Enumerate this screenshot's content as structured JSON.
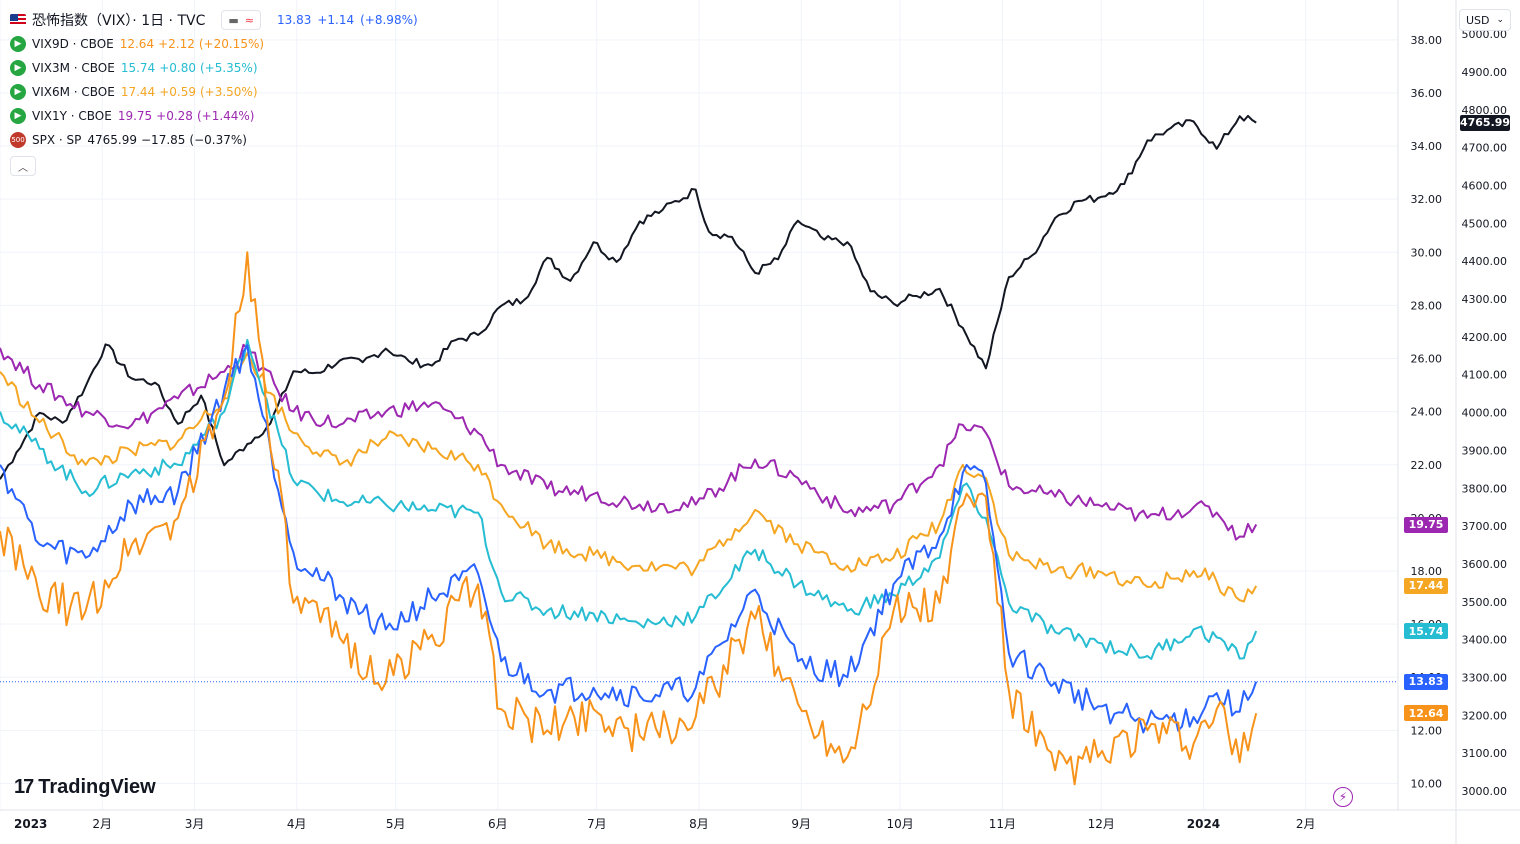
{
  "header": {
    "title": "恐怖指数（VIX）· 1日 · TVC",
    "main_value": "13.83",
    "main_change": "+1.14",
    "main_change_pct": "(+8.98%)",
    "compare_icon": "≈",
    "main_color": "#2962ff"
  },
  "legend": [
    {
      "symbol": "VIX9D · CBOE",
      "value": "12.64",
      "change": "+2.12",
      "pct": "(+20.15%)",
      "color": "#f7931a",
      "badge": "arrow-icon",
      "badge_color": "#26a641"
    },
    {
      "symbol": "VIX3M · CBOE",
      "value": "15.74",
      "change": "+0.80",
      "pct": "(+5.35%)",
      "color": "#26bcd2",
      "badge": "arrow-icon",
      "badge_color": "#26a641"
    },
    {
      "symbol": "VIX6M · CBOE",
      "value": "17.44",
      "change": "+0.59",
      "pct": "(+3.50%)",
      "color": "#f5a623",
      "badge": "arrow-icon",
      "badge_color": "#26a641"
    },
    {
      "symbol": "VIX1Y · CBOE",
      "value": "19.75",
      "change": "+0.28",
      "pct": "(+1.44%)",
      "color": "#9c27b0",
      "badge": "arrow-icon",
      "badge_color": "#26a641"
    },
    {
      "symbol": "SPX · SP",
      "value": "4765.99",
      "change": "−17.85",
      "pct": "(−0.37%)",
      "color": "#131722",
      "badge": "500",
      "badge_color": "#c0392b"
    }
  ],
  "currency": "USD",
  "logo": "TradingView",
  "chart_data": {
    "type": "line",
    "x_ticks": [
      "2023",
      "2月",
      "3月",
      "4月",
      "5月",
      "6月",
      "7月",
      "8月",
      "9月",
      "10月",
      "11月",
      "12月",
      "2024",
      "2月"
    ],
    "left_axis": {
      "ylim": [
        9.0,
        39.5
      ],
      "ticks": [
        38.0,
        36.0,
        34.0,
        32.0,
        30.0,
        28.0,
        26.0,
        24.0,
        22.0,
        20.0,
        18.0,
        16.0,
        14.0,
        12.0,
        10.0
      ]
    },
    "right_axis": {
      "ylim": [
        2950,
        5090
      ],
      "ticks": [
        5000,
        4900,
        4800,
        4700,
        4600,
        4500,
        4400,
        4300,
        4200,
        4100,
        4000,
        3900,
        3800,
        3700,
        3600,
        3500,
        3400,
        3300,
        3200,
        3100,
        3000
      ]
    },
    "current_price_line": 13.83,
    "series": [
      {
        "name": "SPX",
        "axis": "right",
        "color": "#131722",
        "last_label": "4765.99",
        "points": [
          [
            "2023-01-01",
            3824
          ],
          [
            "2023-01-06",
            3895
          ],
          [
            "2023-01-13",
            3999
          ],
          [
            "2023-01-20",
            3973
          ],
          [
            "2023-01-27",
            4070
          ],
          [
            "2023-02-02",
            4180
          ],
          [
            "2023-02-10",
            4090
          ],
          [
            "2023-02-17",
            4079
          ],
          [
            "2023-02-24",
            3970
          ],
          [
            "2023-03-03",
            4045
          ],
          [
            "2023-03-10",
            3861
          ],
          [
            "2023-03-17",
            3917
          ],
          [
            "2023-03-24",
            3971
          ],
          [
            "2023-03-31",
            4109
          ],
          [
            "2023-04-07",
            4105
          ],
          [
            "2023-04-14",
            4137
          ],
          [
            "2023-04-21",
            4133
          ],
          [
            "2023-04-28",
            4169
          ],
          [
            "2023-05-05",
            4136
          ],
          [
            "2023-05-12",
            4124
          ],
          [
            "2023-05-19",
            4191
          ],
          [
            "2023-05-26",
            4205
          ],
          [
            "2023-06-02",
            4282
          ],
          [
            "2023-06-09",
            4298
          ],
          [
            "2023-06-16",
            4409
          ],
          [
            "2023-06-23",
            4348
          ],
          [
            "2023-06-30",
            4450
          ],
          [
            "2023-07-07",
            4398
          ],
          [
            "2023-07-14",
            4505
          ],
          [
            "2023-07-21",
            4536
          ],
          [
            "2023-07-31",
            4589
          ],
          [
            "2023-08-04",
            4478
          ],
          [
            "2023-08-11",
            4464
          ],
          [
            "2023-08-18",
            4369
          ],
          [
            "2023-08-25",
            4405
          ],
          [
            "2023-08-31",
            4507
          ],
          [
            "2023-09-08",
            4457
          ],
          [
            "2023-09-15",
            4450
          ],
          [
            "2023-09-22",
            4320
          ],
          [
            "2023-09-29",
            4288
          ],
          [
            "2023-10-06",
            4308
          ],
          [
            "2023-10-13",
            4327
          ],
          [
            "2023-10-20",
            4224
          ],
          [
            "2023-10-27",
            4117
          ],
          [
            "2023-11-03",
            4358
          ],
          [
            "2023-11-10",
            4415
          ],
          [
            "2023-11-17",
            4514
          ],
          [
            "2023-11-24",
            4559
          ],
          [
            "2023-11-30",
            4567
          ],
          [
            "2023-12-08",
            4604
          ],
          [
            "2023-12-15",
            4719
          ],
          [
            "2023-12-21",
            4746
          ],
          [
            "2023-12-29",
            4769
          ],
          [
            "2024-01-05",
            4697
          ],
          [
            "2024-01-12",
            4783
          ],
          [
            "2024-01-17",
            4766
          ]
        ]
      },
      {
        "name": "VIX1Y",
        "axis": "left",
        "color": "#9c27b0",
        "last_label": "19.75",
        "points": [
          [
            "2023-01-01",
            26.4
          ],
          [
            "2023-01-13",
            25.0
          ],
          [
            "2023-01-27",
            24.0
          ],
          [
            "2023-02-10",
            23.5
          ],
          [
            "2023-02-24",
            24.5
          ],
          [
            "2023-03-10",
            25.5
          ],
          [
            "2023-03-17",
            26.4
          ],
          [
            "2023-03-31",
            24.0
          ],
          [
            "2023-04-14",
            23.5
          ],
          [
            "2023-04-28",
            24.0
          ],
          [
            "2023-05-12",
            24.3
          ],
          [
            "2023-05-26",
            23.2
          ],
          [
            "2023-06-02",
            22.0
          ],
          [
            "2023-06-16",
            21.1
          ],
          [
            "2023-06-30",
            20.9
          ],
          [
            "2023-07-14",
            20.5
          ],
          [
            "2023-07-31",
            20.5
          ],
          [
            "2023-08-18",
            22.2
          ],
          [
            "2023-08-31",
            21.5
          ],
          [
            "2023-09-15",
            20.2
          ],
          [
            "2023-09-29",
            20.5
          ],
          [
            "2023-10-13",
            22.0
          ],
          [
            "2023-10-20",
            23.5
          ],
          [
            "2023-10-27",
            23.2
          ],
          [
            "2023-11-03",
            21.2
          ],
          [
            "2023-11-17",
            20.8
          ],
          [
            "2023-11-30",
            20.5
          ],
          [
            "2023-12-15",
            20.0
          ],
          [
            "2023-12-29",
            20.4
          ],
          [
            "2024-01-05",
            20.2
          ],
          [
            "2024-01-12",
            19.3
          ],
          [
            "2024-01-17",
            19.75
          ]
        ]
      },
      {
        "name": "VIX6M",
        "axis": "left",
        "color": "#f5a623",
        "last_label": "17.44",
        "points": [
          [
            "2023-01-01",
            25.5
          ],
          [
            "2023-01-13",
            23.6
          ],
          [
            "2023-01-27",
            22.0
          ],
          [
            "2023-02-10",
            22.5
          ],
          [
            "2023-02-24",
            22.9
          ],
          [
            "2023-03-10",
            24.5
          ],
          [
            "2023-03-17",
            26.2
          ],
          [
            "2023-03-31",
            23.2
          ],
          [
            "2023-04-14",
            22.0
          ],
          [
            "2023-04-28",
            23.0
          ],
          [
            "2023-05-12",
            22.6
          ],
          [
            "2023-05-26",
            22.0
          ],
          [
            "2023-06-02",
            20.5
          ],
          [
            "2023-06-16",
            19.0
          ],
          [
            "2023-06-30",
            18.6
          ],
          [
            "2023-07-14",
            18.2
          ],
          [
            "2023-07-31",
            18.1
          ],
          [
            "2023-08-18",
            20.3
          ],
          [
            "2023-08-31",
            19.0
          ],
          [
            "2023-09-15",
            18.2
          ],
          [
            "2023-09-29",
            18.5
          ],
          [
            "2023-10-13",
            19.8
          ],
          [
            "2023-10-20",
            22.0
          ],
          [
            "2023-10-27",
            21.5
          ],
          [
            "2023-11-03",
            18.6
          ],
          [
            "2023-11-17",
            18.0
          ],
          [
            "2023-11-30",
            18.0
          ],
          [
            "2023-12-15",
            17.4
          ],
          [
            "2023-12-29",
            18.0
          ],
          [
            "2024-01-05",
            17.6
          ],
          [
            "2024-01-12",
            16.9
          ],
          [
            "2024-01-17",
            17.44
          ]
        ]
      },
      {
        "name": "VIX3M",
        "axis": "left",
        "color": "#26bcd2",
        "last_label": "15.74",
        "points": [
          [
            "2023-01-01",
            24.0
          ],
          [
            "2023-01-13",
            22.6
          ],
          [
            "2023-01-27",
            21.0
          ],
          [
            "2023-02-10",
            21.7
          ],
          [
            "2023-02-24",
            22.0
          ],
          [
            "2023-03-10",
            24.0
          ],
          [
            "2023-03-17",
            26.7
          ],
          [
            "2023-03-31",
            21.4
          ],
          [
            "2023-04-14",
            20.6
          ],
          [
            "2023-04-28",
            20.5
          ],
          [
            "2023-05-12",
            20.3
          ],
          [
            "2023-05-26",
            20.2
          ],
          [
            "2023-06-02",
            17.2
          ],
          [
            "2023-06-16",
            16.5
          ],
          [
            "2023-06-30",
            16.4
          ],
          [
            "2023-07-14",
            16.0
          ],
          [
            "2023-07-31",
            16.3
          ],
          [
            "2023-08-18",
            18.8
          ],
          [
            "2023-08-31",
            17.5
          ],
          [
            "2023-09-15",
            16.5
          ],
          [
            "2023-09-29",
            17.1
          ],
          [
            "2023-10-13",
            18.5
          ],
          [
            "2023-10-20",
            21.2
          ],
          [
            "2023-10-27",
            20.0
          ],
          [
            "2023-11-03",
            16.8
          ],
          [
            "2023-11-17",
            15.7
          ],
          [
            "2023-11-30",
            15.3
          ],
          [
            "2023-12-15",
            14.8
          ],
          [
            "2023-12-29",
            15.8
          ],
          [
            "2024-01-05",
            15.5
          ],
          [
            "2024-01-12",
            14.7
          ],
          [
            "2024-01-17",
            15.74
          ]
        ]
      },
      {
        "name": "VIX",
        "axis": "left",
        "color": "#2962ff",
        "last_label": "13.83",
        "points": [
          [
            "2023-01-01",
            22.0
          ],
          [
            "2023-01-13",
            19.0
          ],
          [
            "2023-01-27",
            18.5
          ],
          [
            "2023-02-10",
            20.5
          ],
          [
            "2023-02-24",
            21.0
          ],
          [
            "2023-03-10",
            24.8
          ],
          [
            "2023-03-17",
            26.5
          ],
          [
            "2023-03-31",
            18.7
          ],
          [
            "2023-04-14",
            17.1
          ],
          [
            "2023-04-28",
            15.8
          ],
          [
            "2023-05-12",
            17.0
          ],
          [
            "2023-05-26",
            17.9
          ],
          [
            "2023-06-02",
            14.6
          ],
          [
            "2023-06-16",
            13.5
          ],
          [
            "2023-06-30",
            13.6
          ],
          [
            "2023-07-14",
            13.3
          ],
          [
            "2023-07-31",
            13.6
          ],
          [
            "2023-08-18",
            17.3
          ],
          [
            "2023-08-31",
            14.6
          ],
          [
            "2023-09-15",
            14.0
          ],
          [
            "2023-09-29",
            17.5
          ],
          [
            "2023-10-13",
            19.3
          ],
          [
            "2023-10-20",
            21.7
          ],
          [
            "2023-10-27",
            21.3
          ],
          [
            "2023-11-03",
            14.9
          ],
          [
            "2023-11-17",
            13.8
          ],
          [
            "2023-11-30",
            12.9
          ],
          [
            "2023-12-15",
            12.3
          ],
          [
            "2023-12-29",
            12.5
          ],
          [
            "2024-01-05",
            13.4
          ],
          [
            "2024-01-12",
            12.7
          ],
          [
            "2024-01-17",
            13.83
          ]
        ]
      },
      {
        "name": "VIX9D",
        "axis": "left",
        "color": "#f7931a",
        "last_label": "12.64",
        "points": [
          [
            "2023-01-01",
            19.5
          ],
          [
            "2023-01-13",
            17.0
          ],
          [
            "2023-01-27",
            16.5
          ],
          [
            "2023-02-10",
            19.0
          ],
          [
            "2023-02-24",
            20.0
          ],
          [
            "2023-03-10",
            24.5
          ],
          [
            "2023-03-17",
            30.0
          ],
          [
            "2023-03-31",
            16.8
          ],
          [
            "2023-04-14",
            15.5
          ],
          [
            "2023-04-28",
            13.8
          ],
          [
            "2023-05-12",
            15.6
          ],
          [
            "2023-05-26",
            17.5
          ],
          [
            "2023-06-02",
            12.8
          ],
          [
            "2023-06-16",
            12.0
          ],
          [
            "2023-06-30",
            12.8
          ],
          [
            "2023-07-14",
            11.8
          ],
          [
            "2023-07-31",
            12.5
          ],
          [
            "2023-08-18",
            16.2
          ],
          [
            "2023-08-31",
            13.0
          ],
          [
            "2023-09-15",
            11.0
          ],
          [
            "2023-09-29",
            16.5
          ],
          [
            "2023-10-13",
            16.8
          ],
          [
            "2023-10-20",
            20.5
          ],
          [
            "2023-10-27",
            20.8
          ],
          [
            "2023-11-03",
            13.5
          ],
          [
            "2023-11-17",
            10.5
          ],
          [
            "2023-11-30",
            11.0
          ],
          [
            "2023-12-15",
            12.0
          ],
          [
            "2023-12-29",
            11.5
          ],
          [
            "2024-01-05",
            12.8
          ],
          [
            "2024-01-12",
            10.8
          ],
          [
            "2024-01-17",
            12.64
          ]
        ]
      }
    ]
  }
}
